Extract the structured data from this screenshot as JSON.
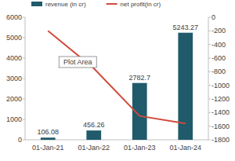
{
  "chart_data": {
    "type": "bar",
    "categories": [
      "01-Jan-21",
      "01-Jan-22",
      "01-Jan-23",
      "01-Jan-24"
    ],
    "series": [
      {
        "name": "revenue (in cr)",
        "type": "bar",
        "color": "#1f5b6b",
        "values": [
          106.08,
          456.26,
          2782.7,
          5243.27
        ],
        "data_labels": true
      },
      {
        "name": "net profit(in cr)",
        "type": "line",
        "color": "#d04a3a",
        "axis": "y2",
        "values": [
          -200,
          -750,
          -1450,
          -1560
        ]
      }
    ],
    "ylim": [
      0,
      6000
    ],
    "yticks": [
      0,
      1000,
      2000,
      3000,
      4000,
      5000,
      6000
    ],
    "y2lim": [
      -1800,
      0
    ],
    "y2ticks": [
      0,
      -200,
      -400,
      -600,
      -800,
      -1000,
      -1200,
      -1400,
      -1600,
      -1800
    ],
    "legend": "top",
    "grid": false,
    "annotations": [
      "Plot Area"
    ]
  }
}
